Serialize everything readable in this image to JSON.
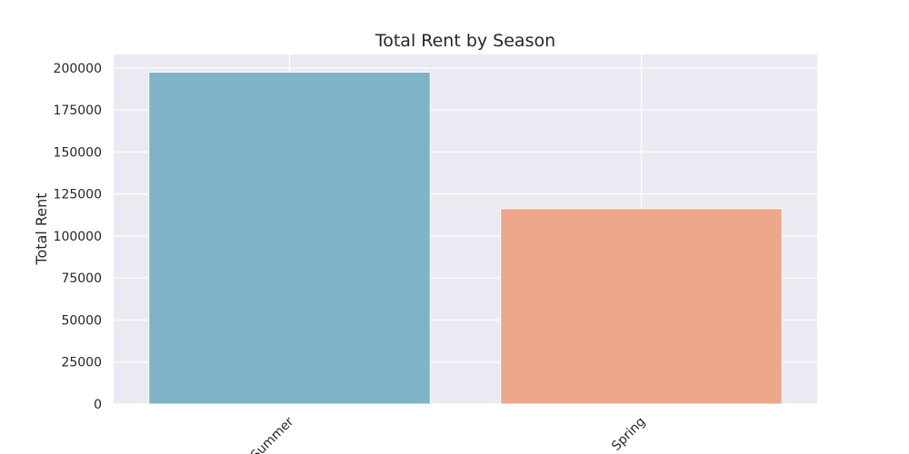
{
  "chart_data": {
    "type": "bar",
    "title": "Total Rent by Season",
    "xlabel": "",
    "ylabel": "Total Rent",
    "categories": [
      "Summer",
      "Spring"
    ],
    "values": [
      197500,
      116300
    ],
    "ylim": [
      0,
      208000
    ],
    "yticks": [
      0,
      25000,
      50000,
      75000,
      100000,
      125000,
      150000,
      175000,
      200000
    ],
    "ytick_labels": [
      "0",
      "25000",
      "50000",
      "75000",
      "100000",
      "125000",
      "150000",
      "175000",
      "200000"
    ],
    "colors": [
      "#7fb4c7",
      "#eda78a"
    ],
    "background": "#eaeaf2",
    "grid": true,
    "xtick_rotation": "45deg"
  }
}
